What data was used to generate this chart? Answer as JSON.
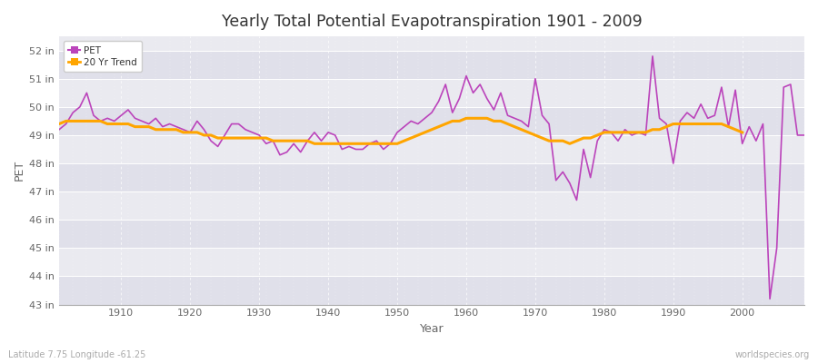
{
  "title": "Yearly Total Potential Evapotranspiration 1901 - 2009",
  "xlabel": "Year",
  "ylabel": "PET",
  "subtitle_left": "Latitude 7.75 Longitude -61.25",
  "subtitle_right": "worldspecies.org",
  "pet_color": "#bb44bb",
  "trend_color": "#ffa500",
  "background_color": "#eaeaf0",
  "ylim": [
    43,
    52.5
  ],
  "yticks": [
    43,
    44,
    45,
    46,
    47,
    48,
    49,
    50,
    51,
    52
  ],
  "xlim": [
    1901,
    2009
  ],
  "years": [
    1901,
    1902,
    1903,
    1904,
    1905,
    1906,
    1907,
    1908,
    1909,
    1910,
    1911,
    1912,
    1913,
    1914,
    1915,
    1916,
    1917,
    1918,
    1919,
    1920,
    1921,
    1922,
    1923,
    1924,
    1925,
    1926,
    1927,
    1928,
    1929,
    1930,
    1931,
    1932,
    1933,
    1934,
    1935,
    1936,
    1937,
    1938,
    1939,
    1940,
    1941,
    1942,
    1943,
    1944,
    1945,
    1946,
    1947,
    1948,
    1949,
    1950,
    1951,
    1952,
    1953,
    1954,
    1955,
    1956,
    1957,
    1958,
    1959,
    1960,
    1961,
    1962,
    1963,
    1964,
    1965,
    1966,
    1967,
    1968,
    1969,
    1970,
    1971,
    1972,
    1973,
    1974,
    1975,
    1976,
    1977,
    1978,
    1979,
    1980,
    1981,
    1982,
    1983,
    1984,
    1985,
    1986,
    1987,
    1988,
    1989,
    1990,
    1991,
    1992,
    1993,
    1994,
    1995,
    1996,
    1997,
    1998,
    1999,
    2000,
    2001,
    2002,
    2003,
    2004,
    2005,
    2006,
    2007,
    2008,
    2009
  ],
  "pet_values": [
    49.2,
    49.4,
    49.8,
    50.0,
    50.5,
    49.7,
    49.5,
    49.6,
    49.5,
    49.7,
    49.9,
    49.6,
    49.5,
    49.4,
    49.6,
    49.3,
    49.4,
    49.3,
    49.2,
    49.1,
    49.5,
    49.2,
    48.8,
    48.6,
    49.0,
    49.4,
    49.4,
    49.2,
    49.1,
    49.0,
    48.7,
    48.8,
    48.3,
    48.4,
    48.7,
    48.4,
    48.8,
    49.1,
    48.8,
    49.1,
    49.0,
    48.5,
    48.6,
    48.5,
    48.5,
    48.7,
    48.8,
    48.5,
    48.7,
    49.1,
    49.3,
    49.5,
    49.4,
    49.6,
    49.8,
    50.2,
    50.8,
    49.8,
    50.3,
    51.1,
    50.5,
    50.8,
    50.3,
    49.9,
    50.5,
    49.7,
    49.6,
    49.5,
    49.3,
    51.0,
    49.7,
    49.4,
    47.4,
    47.7,
    47.3,
    46.7,
    48.5,
    47.5,
    48.8,
    49.2,
    49.1,
    48.8,
    49.2,
    49.0,
    49.1,
    49.0,
    51.8,
    49.6,
    49.4,
    48.0,
    49.5,
    49.8,
    49.6,
    50.1,
    49.6,
    49.7,
    50.7,
    49.3,
    50.6,
    48.7,
    49.3,
    48.8,
    49.4,
    43.2,
    45.0,
    50.7,
    50.8,
    49.0,
    49.0
  ],
  "trend_values": [
    49.4,
    49.5,
    49.5,
    49.5,
    49.5,
    49.5,
    49.5,
    49.4,
    49.4,
    49.4,
    49.4,
    49.3,
    49.3,
    49.3,
    49.2,
    49.2,
    49.2,
    49.2,
    49.1,
    49.1,
    49.1,
    49.0,
    49.0,
    48.9,
    48.9,
    48.9,
    48.9,
    48.9,
    48.9,
    48.9,
    48.9,
    48.8,
    48.8,
    48.8,
    48.8,
    48.8,
    48.8,
    48.7,
    48.7,
    48.7,
    48.7,
    48.7,
    48.7,
    48.7,
    48.7,
    48.7,
    48.7,
    48.7,
    48.7,
    48.7,
    48.8,
    48.9,
    49.0,
    49.1,
    49.2,
    49.3,
    49.4,
    49.5,
    49.5,
    49.6,
    49.6,
    49.6,
    49.6,
    49.5,
    49.5,
    49.4,
    49.3,
    49.2,
    49.1,
    49.0,
    48.9,
    48.8,
    48.8,
    48.8,
    48.7,
    48.8,
    48.9,
    48.9,
    49.0,
    49.1,
    49.1,
    49.1,
    49.1,
    49.1,
    49.1,
    49.1,
    49.2,
    49.2,
    49.3,
    49.4,
    49.4,
    49.4,
    49.4,
    49.4,
    49.4,
    49.4,
    49.4,
    49.3,
    49.2,
    49.1,
    null,
    null,
    null,
    null,
    null,
    null,
    null,
    null,
    null
  ]
}
